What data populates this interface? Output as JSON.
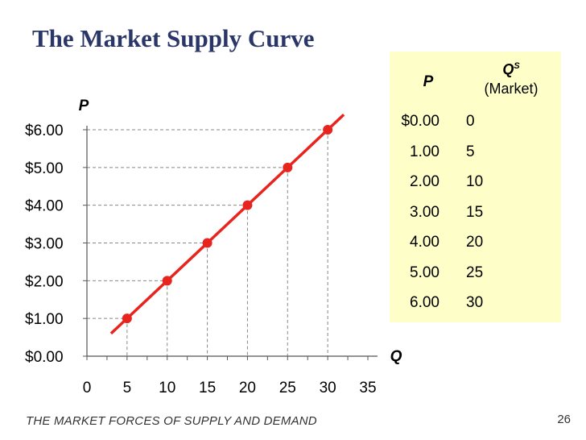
{
  "slide": {
    "title": "The Market Supply Curve",
    "footer": "THE MARKET FORCES OF SUPPLY AND DEMAND",
    "page_number": "26"
  },
  "table": {
    "header_p": "P",
    "header_q": "Q",
    "header_q_sup": "S",
    "header_q_sub": "(Market)",
    "rows": [
      {
        "p": "$0.00",
        "q": "0"
      },
      {
        "p": "1.00",
        "q": "5"
      },
      {
        "p": "2.00",
        "q": "10"
      },
      {
        "p": "3.00",
        "q": "15"
      },
      {
        "p": "4.00",
        "q": "20"
      },
      {
        "p": "5.00",
        "q": "25"
      },
      {
        "p": "6.00",
        "q": "30"
      }
    ]
  },
  "chart_data": {
    "type": "line",
    "xlabel": "Q",
    "ylabel": "P",
    "xlim": [
      0,
      35
    ],
    "ylim": [
      0,
      6
    ],
    "x_ticks": [
      0,
      5,
      10,
      15,
      20,
      25,
      30,
      35
    ],
    "x_tick_labels": [
      "0",
      "5",
      "10",
      "15",
      "20",
      "25",
      "30",
      "35"
    ],
    "y_ticks": [
      0,
      1,
      2,
      3,
      4,
      5,
      6
    ],
    "y_tick_labels": [
      "$0.00",
      "$1.00",
      "$2.00",
      "$3.00",
      "$4.00",
      "$5.00",
      "$6.00"
    ],
    "series": [
      {
        "x": [
          5,
          10,
          15,
          20,
          25,
          30
        ],
        "y": [
          1,
          2,
          3,
          4,
          5,
          6
        ],
        "line_extent": [
          [
            3,
            0.6
          ],
          [
            32,
            6.4
          ]
        ]
      }
    ],
    "grid": "dashed reference lines from points to axes",
    "colors": {
      "line": "#e8241f",
      "marker": "#e8241f",
      "guide": "#888888",
      "axis": "#555555"
    }
  }
}
